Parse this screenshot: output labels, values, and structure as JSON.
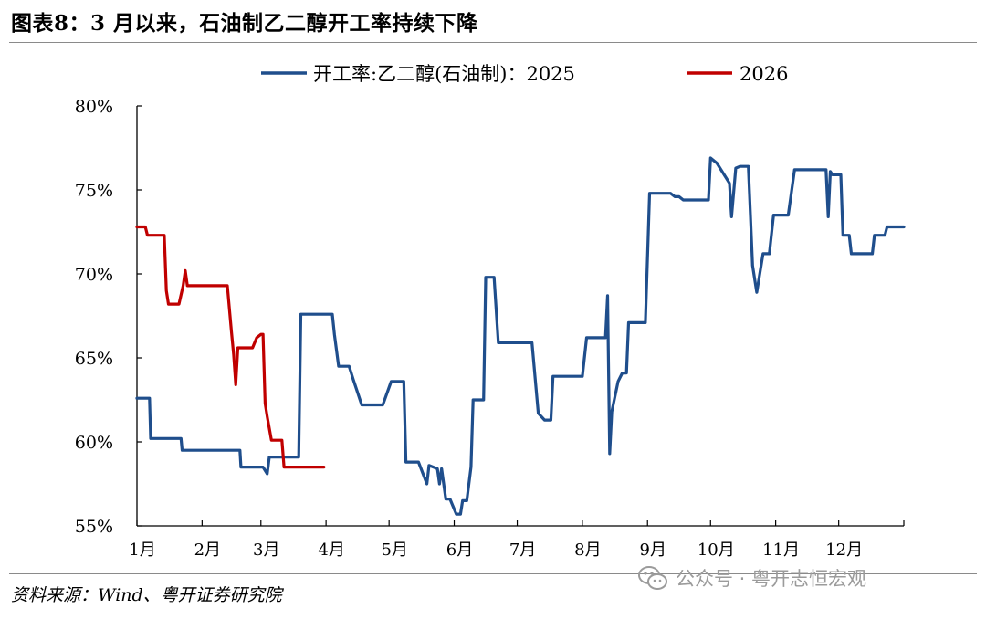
{
  "header": {
    "title": "图表8：3 月以来，石油制乙二醇开工率持续下降"
  },
  "footer": {
    "source": "资料来源：Wind、粤开证券研究院",
    "watermark": "公众号 · 粤开志恒宏观",
    "watermark_icon": "wechat-icon"
  },
  "colors": {
    "series_2025": "#1f4e8c",
    "series_2026": "#c00000",
    "axis": "#000000",
    "rule": "#8a8a8a"
  },
  "chart_data": {
    "type": "line",
    "title": "",
    "xlabel": "",
    "ylabel": "",
    "x_unit": "day of year",
    "xlim": [
      0,
      365
    ],
    "ylim": [
      55,
      80
    ],
    "grid": false,
    "legend_position": "top",
    "y_ticks": [
      55,
      60,
      65,
      70,
      75,
      80
    ],
    "y_tick_labels": [
      "55%",
      "60%",
      "65%",
      "70%",
      "75%",
      "80%"
    ],
    "x_ticks": [
      0,
      31,
      59,
      90,
      120,
      151,
      181,
      212,
      243,
      273,
      304,
      334
    ],
    "x_tick_labels": [
      "1月",
      "2月",
      "3月",
      "4月",
      "5月",
      "6月",
      "7月",
      "8月",
      "9月",
      "10月",
      "11月",
      "12月"
    ],
    "series": [
      {
        "name": "开工率:乙二醇(石油制)：2025",
        "color": "#1f4e8c",
        "points": [
          [
            0,
            62.6
          ],
          [
            6,
            62.6
          ],
          [
            6.5,
            60.2
          ],
          [
            21,
            60.2
          ],
          [
            21.5,
            59.5
          ],
          [
            49,
            59.5
          ],
          [
            49.5,
            58.5
          ],
          [
            60,
            58.5
          ],
          [
            62,
            58.1
          ],
          [
            63,
            59.1
          ],
          [
            77,
            59.1
          ],
          [
            78,
            67.6
          ],
          [
            93,
            67.6
          ],
          [
            94,
            66.4
          ],
          [
            96,
            64.5
          ],
          [
            101,
            64.5
          ],
          [
            103,
            63.7
          ],
          [
            107,
            62.2
          ],
          [
            117,
            62.2
          ],
          [
            121,
            63.6
          ],
          [
            127,
            63.6
          ],
          [
            128,
            58.8
          ],
          [
            134,
            58.8
          ],
          [
            138,
            57.5
          ],
          [
            139,
            58.6
          ],
          [
            143,
            58.4
          ],
          [
            144,
            57.5
          ],
          [
            145,
            58.4
          ],
          [
            147,
            56.6
          ],
          [
            149,
            56.6
          ],
          [
            152,
            55.7
          ],
          [
            154,
            55.7
          ],
          [
            155,
            56.5
          ],
          [
            157,
            56.5
          ],
          [
            159,
            58.5
          ],
          [
            160,
            62.5
          ],
          [
            165,
            62.5
          ],
          [
            166,
            69.8
          ],
          [
            170,
            69.8
          ],
          [
            172,
            65.9
          ],
          [
            188,
            65.9
          ],
          [
            191,
            61.7
          ],
          [
            194,
            61.3
          ],
          [
            197,
            61.3
          ],
          [
            198,
            63.9
          ],
          [
            212,
            63.9
          ],
          [
            214,
            66.2
          ],
          [
            223,
            66.2
          ],
          [
            224,
            68.7
          ],
          [
            225,
            59.3
          ],
          [
            226,
            61.8
          ],
          [
            229,
            63.6
          ],
          [
            231,
            64.1
          ],
          [
            233,
            64.1
          ],
          [
            234,
            67.1
          ],
          [
            242,
            67.1
          ],
          [
            244,
            74.8
          ],
          [
            254,
            74.8
          ],
          [
            256,
            74.6
          ],
          [
            258,
            74.6
          ],
          [
            260,
            74.4
          ],
          [
            272,
            74.4
          ],
          [
            273,
            76.9
          ],
          [
            276,
            76.6
          ],
          [
            282,
            75.4
          ],
          [
            283,
            73.4
          ],
          [
            285,
            76.3
          ],
          [
            287,
            76.4
          ],
          [
            291,
            76.4
          ],
          [
            293,
            70.5
          ],
          [
            295,
            68.9
          ],
          [
            298,
            71.2
          ],
          [
            301,
            71.2
          ],
          [
            303,
            73.5
          ],
          [
            310,
            73.5
          ],
          [
            313,
            76.2
          ],
          [
            328,
            76.2
          ],
          [
            329,
            73.4
          ],
          [
            330,
            76.1
          ],
          [
            331,
            75.9
          ],
          [
            335,
            75.9
          ],
          [
            336,
            72.3
          ],
          [
            339,
            72.3
          ],
          [
            340,
            71.2
          ],
          [
            350,
            71.2
          ],
          [
            351,
            72.3
          ],
          [
            356,
            72.3
          ],
          [
            357,
            72.8
          ],
          [
            365,
            72.8
          ]
        ]
      },
      {
        "name": "2026",
        "color": "#c00000",
        "points": [
          [
            0,
            72.8
          ],
          [
            4,
            72.8
          ],
          [
            5,
            72.3
          ],
          [
            13,
            72.3
          ],
          [
            14,
            69.0
          ],
          [
            15,
            68.2
          ],
          [
            20,
            68.2
          ],
          [
            22,
            69.3
          ],
          [
            23,
            70.2
          ],
          [
            24,
            69.3
          ],
          [
            43,
            69.3
          ],
          [
            45,
            66.5
          ],
          [
            46,
            65.2
          ],
          [
            47,
            63.4
          ],
          [
            48,
            65.6
          ],
          [
            55,
            65.6
          ],
          [
            57,
            66.2
          ],
          [
            59,
            66.4
          ],
          [
            60,
            66.4
          ],
          [
            61,
            62.3
          ],
          [
            62,
            61.5
          ],
          [
            64,
            60.1
          ],
          [
            69,
            60.1
          ],
          [
            70,
            58.5
          ],
          [
            89,
            58.5
          ]
        ]
      }
    ]
  }
}
